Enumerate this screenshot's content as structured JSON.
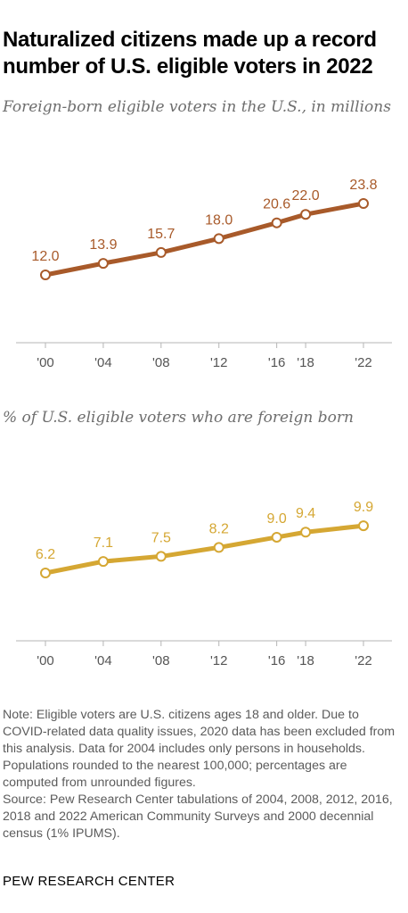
{
  "title": "Naturalized citizens made up a record number of U.S. eligible voters in 2022",
  "note": "Note: Eligible voters are U.S. citizens ages 18 and older. Due to COVID-related data quality issues, 2020 data has been excluded from this analysis. Data for 2004 includes only persons in households. Populations rounded to the nearest 100,000; percentages are computed from unrounded figures.",
  "source": "Source: Pew Research Center tabulations of 2004, 2008, 2012, 2016, 2018 and 2022 American Community Surveys and 2000 decennial census (1% IPUMS).",
  "organization": "PEW RESEARCH CENTER",
  "chart_data": [
    {
      "type": "line",
      "title": "Foreign-born eligible voters in the U.S., in millions",
      "x": [
        2000,
        2004,
        2008,
        2012,
        2016,
        2018,
        2022
      ],
      "x_tick_labels": [
        "'00",
        "'04",
        "'08",
        "'12",
        "'16",
        "'18",
        "'22"
      ],
      "series": [
        {
          "values": [
            12.0,
            13.9,
            15.7,
            18.0,
            20.6,
            22.0,
            23.8
          ],
          "labels": [
            "12.0",
            "13.9",
            "15.7",
            "18.0",
            "20.6",
            "22.0",
            "23.8"
          ]
        }
      ],
      "color": "#a85a2a",
      "xlim": [
        2000,
        2022
      ],
      "grid": false,
      "legend": "none"
    },
    {
      "type": "line",
      "title": "% of U.S. eligible voters who are foreign born",
      "x": [
        2000,
        2004,
        2008,
        2012,
        2016,
        2018,
        2022
      ],
      "x_tick_labels": [
        "'00",
        "'04",
        "'08",
        "'12",
        "'16",
        "'18",
        "'22"
      ],
      "series": [
        {
          "values": [
            6.2,
            7.1,
            7.5,
            8.2,
            9.0,
            9.4,
            9.9
          ],
          "labels": [
            "6.2",
            "7.1",
            "7.5",
            "8.2",
            "9.0",
            "9.4",
            "9.9"
          ]
        }
      ],
      "color": "#d5a733",
      "xlim": [
        2000,
        2022
      ],
      "grid": false,
      "legend": "none"
    }
  ]
}
